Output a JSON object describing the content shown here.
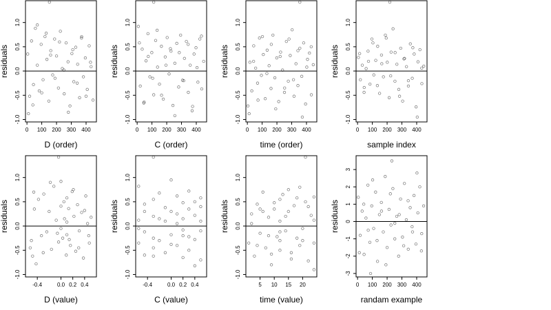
{
  "chart_data": [
    {
      "type": "scatter",
      "xlabel": "D (order)",
      "ylabel": "residuals",
      "xlim": [
        -10,
        470
      ],
      "ylim": [
        -1.05,
        1.45
      ],
      "xticks": [
        0,
        100,
        200,
        300,
        400
      ],
      "xtick_labels": [
        "0",
        "100",
        "200",
        "300",
        "400"
      ],
      "yticks": [
        -1.0,
        -0.5,
        0.0,
        0.5,
        1.0
      ],
      "ytick_labels": [
        "-1.0",
        "-0.5",
        "0.0",
        "0.5",
        "1.0"
      ],
      "hline": 0,
      "x": [
        5,
        18,
        31,
        44,
        57,
        70,
        83,
        96,
        109,
        122,
        135,
        148,
        161,
        174,
        187,
        200,
        213,
        226,
        239,
        252,
        265,
        278,
        291,
        304,
        317,
        330,
        343,
        356,
        369,
        382,
        395,
        408,
        421,
        434,
        447,
        10,
        40,
        70,
        100,
        130,
        160,
        190,
        220,
        250,
        280,
        310,
        340,
        370,
        400,
        430,
        152
      ],
      "y": [
        0.35,
        -0.52,
        0.62,
        -0.28,
        0.88,
        0.12,
        -0.41,
        0.55,
        -0.18,
        0.71,
        0.24,
        -0.62,
        0.42,
        -0.08,
        0.66,
        0.31,
        -0.35,
        0.82,
        0.05,
        -0.47,
        0.58,
        0.19,
        -0.72,
        0.36,
        -0.22,
        0.49,
        0.14,
        -0.55,
        0.68,
        -0.12,
        0.27,
        -0.38,
        0.52,
        0.09,
        -0.6,
        -0.88,
        -0.7,
        0.95,
        -0.45,
        0.78,
        0.33,
        -0.15,
        0.6,
        0.02,
        -0.85,
        0.44,
        -0.25,
        0.71,
        -0.52,
        0.18,
        1.42
      ]
    },
    {
      "type": "scatter",
      "xlabel": "C (order)",
      "ylabel": "residuals",
      "xlim": [
        -10,
        470
      ],
      "ylim": [
        -1.05,
        1.45
      ],
      "xticks": [
        0,
        100,
        200,
        300,
        400
      ],
      "xtick_labels": [
        "0",
        "100",
        "200",
        "300",
        "400"
      ],
      "yticks": [
        -1.0,
        -0.5,
        0.0,
        0.5,
        1.0
      ],
      "ytick_labels": [
        "-1.0",
        "-0.5",
        "0.0",
        "0.5",
        "1.0"
      ],
      "hline": 0,
      "x": [
        8,
        21,
        34,
        47,
        60,
        73,
        86,
        99,
        112,
        125,
        138,
        151,
        164,
        177,
        190,
        203,
        216,
        229,
        242,
        255,
        268,
        281,
        294,
        307,
        320,
        333,
        346,
        359,
        372,
        385,
        398,
        411,
        424,
        437,
        450,
        15,
        45,
        75,
        105,
        135,
        165,
        195,
        225,
        255,
        285,
        315,
        345,
        375,
        405,
        435,
        112
      ],
      "y": [
        0.92,
        -0.31,
        0.45,
        -0.64,
        0.21,
        0.77,
        -0.12,
        0.38,
        -0.49,
        0.63,
        0.08,
        -0.27,
        0.51,
        -0.58,
        0.29,
        0.69,
        -0.06,
        0.41,
        -0.71,
        0.16,
        0.57,
        -0.33,
        0.74,
        -0.19,
        0.26,
        0.61,
        -0.44,
        0.12,
        -0.82,
        0.35,
        0.48,
        -0.23,
        0.66,
        -0.37,
        0.2,
        0.58,
        -0.66,
        0.3,
        -0.15,
        0.84,
        -0.5,
        0.12,
        0.46,
        -0.92,
        0.38,
        -0.2,
        0.55,
        -0.73,
        0.07,
        0.72,
        1.42
      ]
    },
    {
      "type": "scatter",
      "xlabel": "time (order)",
      "ylabel": "residuals",
      "xlim": [
        -10,
        470
      ],
      "ylim": [
        -1.05,
        1.45
      ],
      "xticks": [
        0,
        100,
        200,
        300,
        400
      ],
      "xtick_labels": [
        "0",
        "100",
        "200",
        "300",
        "400"
      ],
      "yticks": [
        -1.0,
        -0.5,
        0.0,
        0.5,
        1.0
      ],
      "ytick_labels": [
        "-1.0",
        "-0.5",
        "0.0",
        "0.5",
        "1.0"
      ],
      "hline": 0,
      "x": [
        4,
        17,
        30,
        43,
        56,
        69,
        82,
        95,
        108,
        121,
        134,
        147,
        160,
        173,
        186,
        199,
        212,
        225,
        238,
        251,
        264,
        277,
        290,
        303,
        316,
        329,
        342,
        355,
        368,
        381,
        394,
        407,
        420,
        433,
        446,
        12,
        42,
        72,
        102,
        132,
        162,
        192,
        222,
        252,
        282,
        312,
        342,
        372,
        402,
        432,
        355
      ],
      "y": [
        -0.72,
        0.18,
        -0.41,
        0.52,
        0.06,
        -0.25,
        0.68,
        -0.09,
        0.34,
        -0.57,
        0.43,
        0.11,
        -0.36,
        0.74,
        -0.14,
        0.27,
        -0.63,
        0.39,
        0.02,
        -0.44,
        0.61,
        -0.21,
        0.32,
        0.85,
        -0.52,
        0.15,
        -0.3,
        0.47,
        -0.11,
        0.58,
        -0.68,
        0.24,
        0.37,
        -0.49,
        0.13,
        -0.88,
        0.2,
        -0.6,
        0.71,
        -0.05,
        0.55,
        -0.78,
        0.3,
        -0.35,
        0.66,
        -0.18,
        0.42,
        -0.95,
        0.08,
        0.5,
        1.42
      ]
    },
    {
      "type": "scatter",
      "xlabel": "sample index",
      "ylabel": "residuals",
      "xlim": [
        -10,
        470
      ],
      "ylim": [
        -1.05,
        1.45
      ],
      "xticks": [
        0,
        100,
        200,
        300,
        400
      ],
      "xtick_labels": [
        "0",
        "100",
        "200",
        "300",
        "400"
      ],
      "yticks": [
        -1.0,
        -0.5,
        0.0,
        0.5,
        1.0
      ],
      "ytick_labels": [
        "-1.0",
        "-0.5",
        "0.0",
        "0.5",
        "1.0"
      ],
      "hline": 0,
      "x": [
        6,
        19,
        32,
        45,
        58,
        71,
        84,
        97,
        110,
        123,
        136,
        149,
        162,
        175,
        188,
        201,
        214,
        227,
        240,
        253,
        266,
        279,
        292,
        305,
        318,
        331,
        344,
        357,
        370,
        383,
        396,
        409,
        422,
        435,
        448,
        14,
        44,
        74,
        104,
        134,
        164,
        194,
        224,
        254,
        284,
        314,
        344,
        374,
        404,
        434,
        218
      ],
      "y": [
        0.28,
        -0.18,
        0.12,
        -0.34,
        0.05,
        0.41,
        -0.27,
        0.66,
        -0.08,
        0.22,
        0.51,
        -0.46,
        0.33,
        -0.12,
        0.74,
        0.18,
        -0.55,
        0.39,
        0.87,
        -0.21,
        0.14,
        -0.38,
        0.47,
        -0.62,
        0.26,
        0.09,
        -0.31,
        0.56,
        -0.15,
        0.35,
        -0.74,
        0.19,
        0.44,
        -0.26,
        0.1,
        0.36,
        -0.44,
        0.2,
        0.58,
        -0.3,
        0.15,
        0.68,
        -0.1,
        0.38,
        -0.52,
        0.25,
        -0.2,
        0.48,
        -0.95,
        0.06,
        1.42
      ]
    },
    {
      "type": "scatter",
      "xlabel": "D (value)",
      "ylabel": "residuals",
      "xlim": [
        -0.6,
        0.6
      ],
      "ylim": [
        -1.05,
        1.45
      ],
      "xticks": [
        -0.4,
        0.0,
        0.2,
        0.4
      ],
      "xtick_labels": [
        "-0.4",
        "0.0",
        "0.2",
        "0.4"
      ],
      "yticks": [
        -1.0,
        -0.5,
        0.0,
        0.5,
        1.0
      ],
      "ytick_labels": [
        "-1.0",
        "-0.5",
        "0.0",
        "0.5",
        "1.0"
      ],
      "hline": 0,
      "x": [
        -0.52,
        -0.48,
        -0.45,
        -0.42,
        -0.38,
        -0.33,
        -0.29,
        -0.24,
        -0.2,
        -0.16,
        -0.12,
        -0.08,
        -0.04,
        0.0,
        0.0,
        0.0,
        0.03,
        0.06,
        0.09,
        0.1,
        0.1,
        0.1,
        0.13,
        0.16,
        0.19,
        0.22,
        0.25,
        0.28,
        0.31,
        0.35,
        0.38,
        0.42,
        0.45,
        0.48,
        0.51,
        -0.5,
        -0.46,
        -0.3,
        -0.18,
        -0.06,
        0.05,
        0.14,
        0.21,
        0.3,
        0.4,
        0.47,
        -0.04
      ],
      "y": [
        -0.45,
        -0.62,
        0.35,
        -0.78,
        0.55,
        -0.2,
        0.66,
        -0.12,
        0.3,
        -0.48,
        0.82,
        0.12,
        -0.33,
        0.41,
        -0.05,
        0.92,
        -0.25,
        0.15,
        -0.6,
        0.58,
        0.08,
        -0.18,
        0.36,
        -0.4,
        0.71,
        0.2,
        -0.52,
        0.44,
        -0.1,
        0.28,
        -0.66,
        0.62,
        0.05,
        -0.35,
        0.18,
        -0.3,
        0.7,
        -0.55,
        0.9,
        -0.15,
        0.5,
        -0.28,
        0.75,
        -0.45,
        0.32,
        -0.2,
        1.42
      ]
    },
    {
      "type": "scatter",
      "xlabel": "C (value)",
      "ylabel": "residuals",
      "xlim": [
        -0.6,
        0.6
      ],
      "ylim": [
        -1.05,
        1.45
      ],
      "xticks": [
        -0.4,
        0.0,
        0.2,
        0.4
      ],
      "xtick_labels": [
        "-0.4",
        "0.0",
        "0.2",
        "0.4"
      ],
      "yticks": [
        -1.0,
        -0.5,
        0.0,
        0.5,
        1.0
      ],
      "ytick_labels": [
        "-1.0",
        "-0.5",
        "0.0",
        "0.5",
        "1.0"
      ],
      "hline": 0,
      "x": [
        -0.55,
        -0.55,
        -0.55,
        -0.45,
        -0.45,
        -0.45,
        -0.3,
        -0.3,
        -0.3,
        -0.3,
        -0.2,
        -0.2,
        -0.1,
        -0.1,
        0.0,
        0.0,
        0.0,
        0.1,
        0.1,
        0.1,
        0.2,
        0.2,
        0.2,
        0.2,
        0.3,
        0.3,
        0.3,
        0.4,
        0.4,
        0.4,
        0.5,
        0.5,
        0.5,
        0.5,
        -0.55,
        -0.45,
        -0.3,
        -0.2,
        -0.1,
        0.0,
        0.1,
        0.2,
        0.3,
        0.4,
        0.5,
        -0.3
      ],
      "y": [
        0.82,
        -0.35,
        0.12,
        -0.6,
        0.45,
        -0.12,
        0.55,
        -0.25,
        0.2,
        -0.45,
        0.68,
        -0.3,
        0.1,
        -0.55,
        0.95,
        -0.18,
        0.3,
        -0.4,
        0.62,
        0.05,
        -0.2,
        0.48,
        -0.65,
        0.15,
        0.35,
        -0.5,
        0.72,
        -0.28,
        0.22,
        -0.82,
        0.58,
        -0.1,
        0.4,
        -0.7,
        -0.05,
        0.3,
        -0.62,
        0.15,
        0.38,
        -0.38,
        0.25,
        -0.08,
        -0.22,
        0.5,
        0.1,
        1.42
      ]
    },
    {
      "type": "scatter",
      "xlabel": "time (value)",
      "ylabel": "residuals",
      "xlim": [
        0,
        25
      ],
      "ylim": [
        -1.05,
        1.45
      ],
      "xticks": [
        5,
        10,
        15,
        20
      ],
      "xtick_labels": [
        "5",
        "10",
        "15",
        "20"
      ],
      "yticks": [
        -1.0,
        -0.5,
        0.0,
        0.5,
        1.0
      ],
      "ytick_labels": [
        "-1.0",
        "-0.5",
        "0.0",
        "0.5",
        "1.0"
      ],
      "hline": 0,
      "x": [
        1,
        2,
        3,
        4,
        5,
        6,
        7,
        8,
        9,
        10,
        11,
        12,
        12,
        12,
        12,
        13,
        14,
        15,
        16,
        17,
        18,
        19,
        20,
        21,
        22,
        23,
        24,
        24,
        24,
        2,
        4,
        6,
        8,
        10,
        12,
        14,
        16,
        18,
        20,
        22,
        24,
        5,
        9,
        15,
        19,
        21
      ],
      "y": [
        -0.35,
        0.25,
        -0.62,
        0.45,
        -0.15,
        0.7,
        -0.45,
        0.18,
        -0.8,
        0.35,
        -0.22,
        0.55,
        -0.5,
        0.1,
        -0.3,
        0.65,
        -0.1,
        0.3,
        -0.55,
        0.42,
        -0.25,
        0.8,
        -0.05,
        0.5,
        -0.72,
        0.22,
        0.6,
        -0.35,
        0.12,
        0.05,
        -0.4,
        0.3,
        -0.2,
        0.48,
        -0.12,
        0.2,
        -0.68,
        0.58,
        -0.3,
        0.4,
        -0.9,
        0.35,
        -0.58,
        0.75,
        -0.4,
        1.42
      ]
    },
    {
      "type": "scatter",
      "xlabel": "randam example",
      "ylabel": "residuals",
      "xlim": [
        -10,
        470
      ],
      "ylim": [
        -3.2,
        3.8
      ],
      "xticks": [
        0,
        100,
        200,
        300,
        400
      ],
      "xtick_labels": [
        "0",
        "100",
        "200",
        "300",
        "400"
      ],
      "yticks": [
        -3,
        -2,
        -1,
        0,
        1,
        2,
        3
      ],
      "ytick_labels": [
        "-3",
        "-2",
        "-1",
        "0",
        "1",
        "2",
        "3"
      ],
      "hline": 0,
      "x": [
        5,
        18,
        31,
        44,
        57,
        70,
        83,
        96,
        109,
        122,
        135,
        148,
        161,
        174,
        187,
        200,
        213,
        226,
        239,
        252,
        265,
        278,
        291,
        304,
        317,
        330,
        343,
        356,
        369,
        382,
        395,
        408,
        421,
        434,
        447,
        12,
        42,
        72,
        102,
        132,
        162,
        192,
        222,
        252,
        282,
        312,
        342,
        372,
        402,
        432,
        232,
        88
      ],
      "y": [
        1.4,
        -0.8,
        0.6,
        -1.9,
        0.2,
        2.1,
        -1.2,
        0.9,
        -0.4,
        1.7,
        -2.3,
        0.4,
        1.1,
        -0.6,
        2.6,
        -1.5,
        0.7,
        -0.2,
        1.9,
        -1.0,
        0.3,
        -2.0,
        1.3,
        -0.9,
        2.2,
        0.1,
        -1.6,
        0.8,
        -0.3,
        1.5,
        -1.3,
        0.5,
        2.0,
        -0.7,
        0.9,
        -1.8,
        1.0,
        -0.5,
        2.4,
        -1.1,
        0.6,
        -2.5,
        1.6,
        -0.1,
        0.4,
        -1.4,
        1.2,
        -0.6,
        2.8,
        -1.7,
        3.5,
        -3.0
      ]
    }
  ]
}
